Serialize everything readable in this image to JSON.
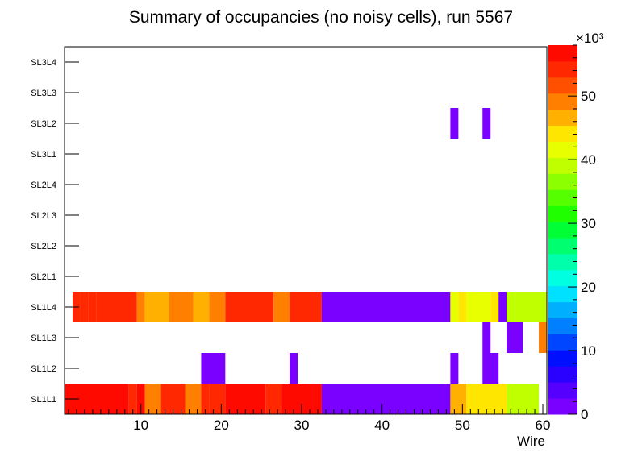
{
  "chart_data": {
    "type": "heatmap",
    "title": "Summary of occupancies (no noisy cells), run 5567",
    "xlabel": "Wire",
    "ylabel": "",
    "xlim": [
      0.5,
      60.5
    ],
    "x_ticks": [
      "10",
      "20",
      "30",
      "40",
      "50",
      "60"
    ],
    "y_categories": [
      "SL1L1",
      "SL1L2",
      "SL1L3",
      "SL1L4",
      "SL2L1",
      "SL2L2",
      "SL2L3",
      "SL2L4",
      "SL3L1",
      "SL3L2",
      "SL3L3",
      "SL3L4"
    ],
    "z_range": [
      0,
      58000
    ],
    "z_ticks": [
      "0",
      "10",
      "20",
      "30",
      "40",
      "50"
    ],
    "z_multiplier": "×10³",
    "palette": [
      "#7a00ff",
      "#5500ff",
      "#2a00ff",
      "#0010ff",
      "#0045ff",
      "#0080ff",
      "#00b0ff",
      "#00e0ff",
      "#00ffe0",
      "#00ffaa",
      "#00ff70",
      "#00ff35",
      "#20ff00",
      "#55ff00",
      "#8cff00",
      "#c0ff00",
      "#e8ff00",
      "#ffe600",
      "#ffb000",
      "#ff8000",
      "#ff5000",
      "#ff2800",
      "#ff0a00"
    ],
    "rows": [
      {
        "layer": "SL1L1",
        "segments": [
          {
            "from": 0.5,
            "to": 8.5,
            "z": 57000
          },
          {
            "from": 8.5,
            "to": 9.5,
            "z": 53000
          },
          {
            "from": 9.5,
            "to": 10.5,
            "z": 56000
          },
          {
            "from": 10.5,
            "to": 12.5,
            "z": 50000
          },
          {
            "from": 12.5,
            "to": 15.5,
            "z": 53000
          },
          {
            "from": 15.5,
            "to": 17.5,
            "z": 50000
          },
          {
            "from": 17.5,
            "to": 18.5,
            "z": 53000
          },
          {
            "from": 18.5,
            "to": 20.5,
            "z": 55000
          },
          {
            "from": 20.5,
            "to": 25.5,
            "z": 57000
          },
          {
            "from": 25.5,
            "to": 27.5,
            "z": 53000
          },
          {
            "from": 27.5,
            "to": 31.5,
            "z": 56000
          },
          {
            "from": 31.5,
            "to": 32.5,
            "z": 57000
          },
          {
            "from": 32.5,
            "to": 48.5,
            "z": 1000
          },
          {
            "from": 48.5,
            "to": 50.5,
            "z": 46000
          },
          {
            "from": 50.5,
            "to": 55.5,
            "z": 43000
          },
          {
            "from": 55.5,
            "to": 59.5,
            "z": 39000
          }
        ]
      },
      {
        "layer": "SL1L2",
        "segments": [
          {
            "from": 17.5,
            "to": 20.5,
            "z": 1000
          },
          {
            "from": 28.5,
            "to": 29.5,
            "z": 1000
          },
          {
            "from": 48.5,
            "to": 49.5,
            "z": 1000
          },
          {
            "from": 52.5,
            "to": 54.5,
            "z": 1000
          }
        ]
      },
      {
        "layer": "SL1L3",
        "segments": [
          {
            "from": 52.5,
            "to": 53.5,
            "z": 1000
          },
          {
            "from": 55.5,
            "to": 57.5,
            "z": 1000
          },
          {
            "from": 59.5,
            "to": 60.5,
            "z": 50000
          }
        ]
      },
      {
        "layer": "SL1L4",
        "segments": [
          {
            "from": 1.5,
            "to": 2.5,
            "z": 55000
          },
          {
            "from": 2.5,
            "to": 3.5,
            "z": 53000
          },
          {
            "from": 3.5,
            "to": 4.5,
            "z": 55000
          },
          {
            "from": 4.5,
            "to": 9.5,
            "z": 53000
          },
          {
            "from": 9.5,
            "to": 10.5,
            "z": 50000
          },
          {
            "from": 10.5,
            "to": 13.5,
            "z": 46000
          },
          {
            "from": 13.5,
            "to": 16.5,
            "z": 50000
          },
          {
            "from": 16.5,
            "to": 18.5,
            "z": 46000
          },
          {
            "from": 18.5,
            "to": 20.5,
            "z": 50000
          },
          {
            "from": 20.5,
            "to": 26.5,
            "z": 53000
          },
          {
            "from": 26.5,
            "to": 28.5,
            "z": 50000
          },
          {
            "from": 28.5,
            "to": 32.5,
            "z": 53000
          },
          {
            "from": 32.5,
            "to": 48.5,
            "z": 1000
          },
          {
            "from": 48.5,
            "to": 49.5,
            "z": 41000
          },
          {
            "from": 49.5,
            "to": 50.5,
            "z": 44000
          },
          {
            "from": 50.5,
            "to": 53.5,
            "z": 41000
          },
          {
            "from": 53.5,
            "to": 54.5,
            "z": 43000
          },
          {
            "from": 54.5,
            "to": 55.5,
            "z": 1000
          },
          {
            "from": 55.5,
            "to": 56.5,
            "z": 40000
          },
          {
            "from": 56.5,
            "to": 60.5,
            "z": 38000
          }
        ]
      },
      {
        "layer": "SL2L1",
        "segments": []
      },
      {
        "layer": "SL2L2",
        "segments": []
      },
      {
        "layer": "SL2L3",
        "segments": []
      },
      {
        "layer": "SL2L4",
        "segments": []
      },
      {
        "layer": "SL3L1",
        "segments": []
      },
      {
        "layer": "SL3L2",
        "segments": [
          {
            "from": 48.5,
            "to": 49.5,
            "z": 1000
          },
          {
            "from": 52.5,
            "to": 53.5,
            "z": 1000
          }
        ]
      },
      {
        "layer": "SL3L3",
        "segments": []
      },
      {
        "layer": "SL3L4",
        "segments": []
      }
    ]
  }
}
